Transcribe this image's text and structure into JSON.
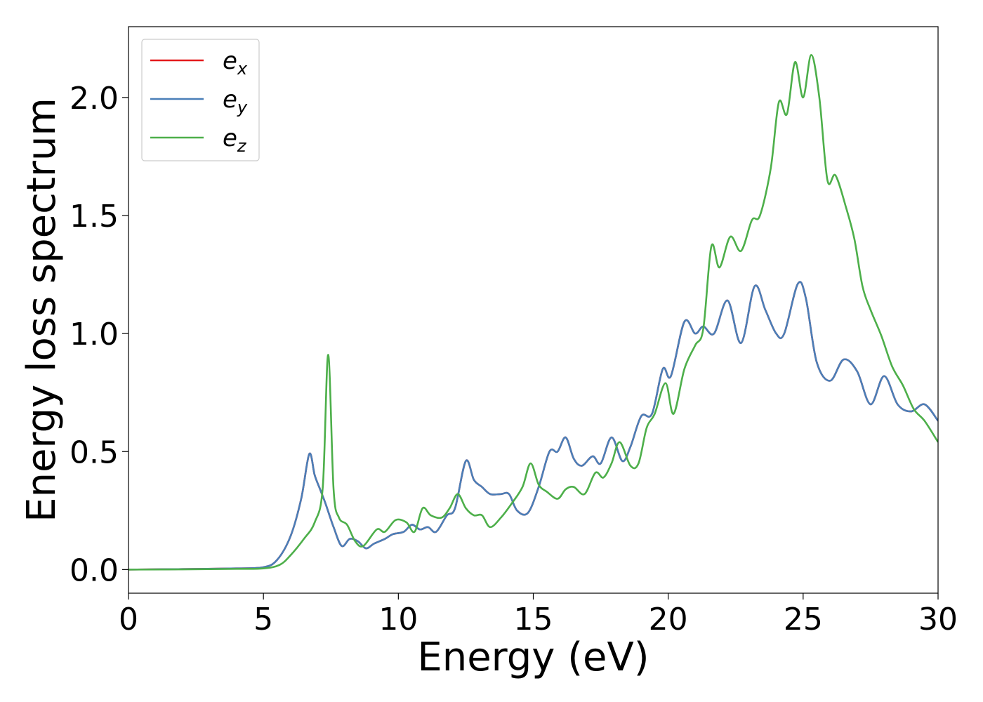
{
  "chart_data": {
    "type": "line",
    "title": "",
    "xlabel": "Energy (eV)",
    "ylabel": "Energy loss spectrum",
    "xlim": [
      0,
      30
    ],
    "ylim": [
      -0.1,
      2.3
    ],
    "xticks": [
      0,
      5,
      10,
      15,
      20,
      25,
      30
    ],
    "xtick_labels": [
      "0",
      "5",
      "10",
      "15",
      "20",
      "25",
      "30"
    ],
    "yticks": [
      0.0,
      0.5,
      1.0,
      1.5,
      2.0
    ],
    "ytick_labels": [
      "0.0",
      "0.5",
      "1.0",
      "1.5",
      "2.0"
    ],
    "grid": false,
    "legend_position": "top-left",
    "series": [
      {
        "name": "e",
        "subscript": "x",
        "color": "#e41a1c",
        "points": [
          [
            0,
            0
          ],
          [
            2,
            0.002
          ],
          [
            4,
            0.005
          ],
          [
            5,
            0.01
          ],
          [
            5.5,
            0.04
          ],
          [
            6,
            0.14
          ],
          [
            6.4,
            0.3
          ],
          [
            6.7,
            0.49
          ],
          [
            6.9,
            0.4
          ],
          [
            7.1,
            0.34
          ],
          [
            7.3,
            0.28
          ],
          [
            7.6,
            0.18
          ],
          [
            7.9,
            0.1
          ],
          [
            8.2,
            0.13
          ],
          [
            8.5,
            0.12
          ],
          [
            8.8,
            0.09
          ],
          [
            9.1,
            0.11
          ],
          [
            9.5,
            0.13
          ],
          [
            9.8,
            0.15
          ],
          [
            10.2,
            0.16
          ],
          [
            10.5,
            0.19
          ],
          [
            10.8,
            0.17
          ],
          [
            11.1,
            0.18
          ],
          [
            11.4,
            0.16
          ],
          [
            11.8,
            0.23
          ],
          [
            12.1,
            0.26
          ],
          [
            12.5,
            0.46
          ],
          [
            12.8,
            0.38
          ],
          [
            13.1,
            0.35
          ],
          [
            13.4,
            0.32
          ],
          [
            13.8,
            0.32
          ],
          [
            14.1,
            0.32
          ],
          [
            14.4,
            0.25
          ],
          [
            14.8,
            0.24
          ],
          [
            15.2,
            0.35
          ],
          [
            15.6,
            0.5
          ],
          [
            15.9,
            0.5
          ],
          [
            16.2,
            0.56
          ],
          [
            16.5,
            0.47
          ],
          [
            16.8,
            0.44
          ],
          [
            17.2,
            0.48
          ],
          [
            17.5,
            0.45
          ],
          [
            17.9,
            0.56
          ],
          [
            18.3,
            0.46
          ],
          [
            18.6,
            0.52
          ],
          [
            19.0,
            0.65
          ],
          [
            19.4,
            0.66
          ],
          [
            19.8,
            0.85
          ],
          [
            20.1,
            0.82
          ],
          [
            20.6,
            1.05
          ],
          [
            21.0,
            1.0
          ],
          [
            21.3,
            1.03
          ],
          [
            21.7,
            1.0
          ],
          [
            22.2,
            1.14
          ],
          [
            22.7,
            0.96
          ],
          [
            23.2,
            1.2
          ],
          [
            23.6,
            1.1
          ],
          [
            24.0,
            1.0
          ],
          [
            24.3,
            1.0
          ],
          [
            24.8,
            1.21
          ],
          [
            25.1,
            1.15
          ],
          [
            25.5,
            0.88
          ],
          [
            26.0,
            0.8
          ],
          [
            26.5,
            0.89
          ],
          [
            27.0,
            0.84
          ],
          [
            27.5,
            0.7
          ],
          [
            28.0,
            0.82
          ],
          [
            28.5,
            0.7
          ],
          [
            29.0,
            0.67
          ],
          [
            29.5,
            0.7
          ],
          [
            30.0,
            0.63
          ]
        ]
      },
      {
        "name": "e",
        "subscript": "y",
        "color": "#4a7fb8",
        "points": [
          [
            0,
            0
          ],
          [
            2,
            0.002
          ],
          [
            4,
            0.005
          ],
          [
            5,
            0.01
          ],
          [
            5.5,
            0.04
          ],
          [
            6,
            0.14
          ],
          [
            6.4,
            0.3
          ],
          [
            6.7,
            0.49
          ],
          [
            6.9,
            0.4
          ],
          [
            7.1,
            0.34
          ],
          [
            7.3,
            0.28
          ],
          [
            7.6,
            0.18
          ],
          [
            7.9,
            0.1
          ],
          [
            8.2,
            0.13
          ],
          [
            8.5,
            0.12
          ],
          [
            8.8,
            0.09
          ],
          [
            9.1,
            0.11
          ],
          [
            9.5,
            0.13
          ],
          [
            9.8,
            0.15
          ],
          [
            10.2,
            0.16
          ],
          [
            10.5,
            0.19
          ],
          [
            10.8,
            0.17
          ],
          [
            11.1,
            0.18
          ],
          [
            11.4,
            0.16
          ],
          [
            11.8,
            0.23
          ],
          [
            12.1,
            0.26
          ],
          [
            12.5,
            0.46
          ],
          [
            12.8,
            0.38
          ],
          [
            13.1,
            0.35
          ],
          [
            13.4,
            0.32
          ],
          [
            13.8,
            0.32
          ],
          [
            14.1,
            0.32
          ],
          [
            14.4,
            0.25
          ],
          [
            14.8,
            0.24
          ],
          [
            15.2,
            0.35
          ],
          [
            15.6,
            0.5
          ],
          [
            15.9,
            0.5
          ],
          [
            16.2,
            0.56
          ],
          [
            16.5,
            0.47
          ],
          [
            16.8,
            0.44
          ],
          [
            17.2,
            0.48
          ],
          [
            17.5,
            0.45
          ],
          [
            17.9,
            0.56
          ],
          [
            18.3,
            0.46
          ],
          [
            18.6,
            0.52
          ],
          [
            19.0,
            0.65
          ],
          [
            19.4,
            0.66
          ],
          [
            19.8,
            0.85
          ],
          [
            20.1,
            0.82
          ],
          [
            20.6,
            1.05
          ],
          [
            21.0,
            1.0
          ],
          [
            21.3,
            1.03
          ],
          [
            21.7,
            1.0
          ],
          [
            22.2,
            1.14
          ],
          [
            22.7,
            0.96
          ],
          [
            23.2,
            1.2
          ],
          [
            23.6,
            1.1
          ],
          [
            24.0,
            1.0
          ],
          [
            24.3,
            1.0
          ],
          [
            24.8,
            1.21
          ],
          [
            25.1,
            1.15
          ],
          [
            25.5,
            0.88
          ],
          [
            26.0,
            0.8
          ],
          [
            26.5,
            0.89
          ],
          [
            27.0,
            0.84
          ],
          [
            27.5,
            0.7
          ],
          [
            28.0,
            0.82
          ],
          [
            28.5,
            0.7
          ],
          [
            29.0,
            0.67
          ],
          [
            29.5,
            0.7
          ],
          [
            30.0,
            0.63
          ]
        ]
      },
      {
        "name": "e",
        "subscript": "z",
        "color": "#4daf4a",
        "points": [
          [
            0,
            0
          ],
          [
            2,
            0.001
          ],
          [
            4,
            0.003
          ],
          [
            5,
            0.005
          ],
          [
            5.6,
            0.02
          ],
          [
            6.0,
            0.06
          ],
          [
            6.5,
            0.13
          ],
          [
            6.9,
            0.2
          ],
          [
            7.2,
            0.35
          ],
          [
            7.4,
            0.91
          ],
          [
            7.6,
            0.34
          ],
          [
            7.8,
            0.22
          ],
          [
            8.1,
            0.19
          ],
          [
            8.4,
            0.12
          ],
          [
            8.7,
            0.1
          ],
          [
            9.2,
            0.17
          ],
          [
            9.5,
            0.16
          ],
          [
            9.9,
            0.21
          ],
          [
            10.3,
            0.2
          ],
          [
            10.6,
            0.16
          ],
          [
            10.9,
            0.26
          ],
          [
            11.2,
            0.23
          ],
          [
            11.6,
            0.22
          ],
          [
            11.9,
            0.26
          ],
          [
            12.2,
            0.32
          ],
          [
            12.5,
            0.26
          ],
          [
            12.8,
            0.23
          ],
          [
            13.1,
            0.23
          ],
          [
            13.4,
            0.18
          ],
          [
            13.8,
            0.22
          ],
          [
            14.2,
            0.28
          ],
          [
            14.6,
            0.35
          ],
          [
            14.9,
            0.45
          ],
          [
            15.2,
            0.36
          ],
          [
            15.5,
            0.33
          ],
          [
            15.9,
            0.3
          ],
          [
            16.2,
            0.34
          ],
          [
            16.5,
            0.35
          ],
          [
            16.9,
            0.32
          ],
          [
            17.3,
            0.41
          ],
          [
            17.6,
            0.39
          ],
          [
            17.9,
            0.45
          ],
          [
            18.2,
            0.54
          ],
          [
            18.6,
            0.44
          ],
          [
            18.9,
            0.45
          ],
          [
            19.2,
            0.6
          ],
          [
            19.5,
            0.66
          ],
          [
            19.9,
            0.79
          ],
          [
            20.2,
            0.66
          ],
          [
            20.6,
            0.85
          ],
          [
            21.0,
            0.95
          ],
          [
            21.3,
            1.02
          ],
          [
            21.6,
            1.37
          ],
          [
            21.9,
            1.28
          ],
          [
            22.3,
            1.41
          ],
          [
            22.7,
            1.35
          ],
          [
            23.1,
            1.48
          ],
          [
            23.4,
            1.5
          ],
          [
            23.8,
            1.7
          ],
          [
            24.1,
            1.98
          ],
          [
            24.4,
            1.93
          ],
          [
            24.7,
            2.15
          ],
          [
            25.0,
            2.0
          ],
          [
            25.3,
            2.18
          ],
          [
            25.6,
            2.0
          ],
          [
            25.9,
            1.65
          ],
          [
            26.2,
            1.67
          ],
          [
            26.6,
            1.53
          ],
          [
            26.9,
            1.4
          ],
          [
            27.2,
            1.2
          ],
          [
            27.5,
            1.1
          ],
          [
            27.9,
            0.99
          ],
          [
            28.3,
            0.86
          ],
          [
            28.7,
            0.78
          ],
          [
            29.1,
            0.68
          ],
          [
            29.5,
            0.63
          ],
          [
            30.0,
            0.54
          ]
        ]
      }
    ]
  }
}
